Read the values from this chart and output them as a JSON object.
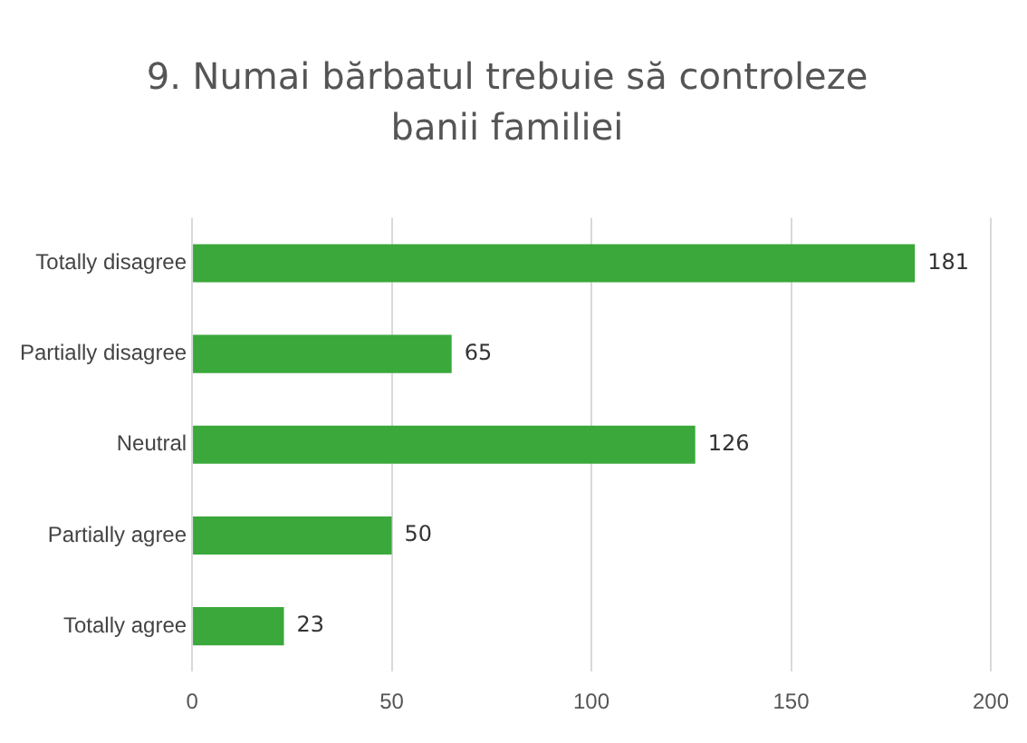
{
  "chart_data": {
    "type": "bar",
    "orientation": "horizontal",
    "title": "9. Numai bărbatul trebuie să controleze banii familiei",
    "categories": [
      "Totally disagree",
      "Partially disagree",
      "Neutral",
      "Partially agree",
      "Totally agree"
    ],
    "values": [
      181,
      65,
      126,
      50,
      23
    ],
    "color": "#3aa83a",
    "xlim": [
      0,
      200
    ],
    "xticks": [
      0,
      50,
      100,
      150,
      200
    ],
    "grid": "x",
    "data_labels": true
  }
}
